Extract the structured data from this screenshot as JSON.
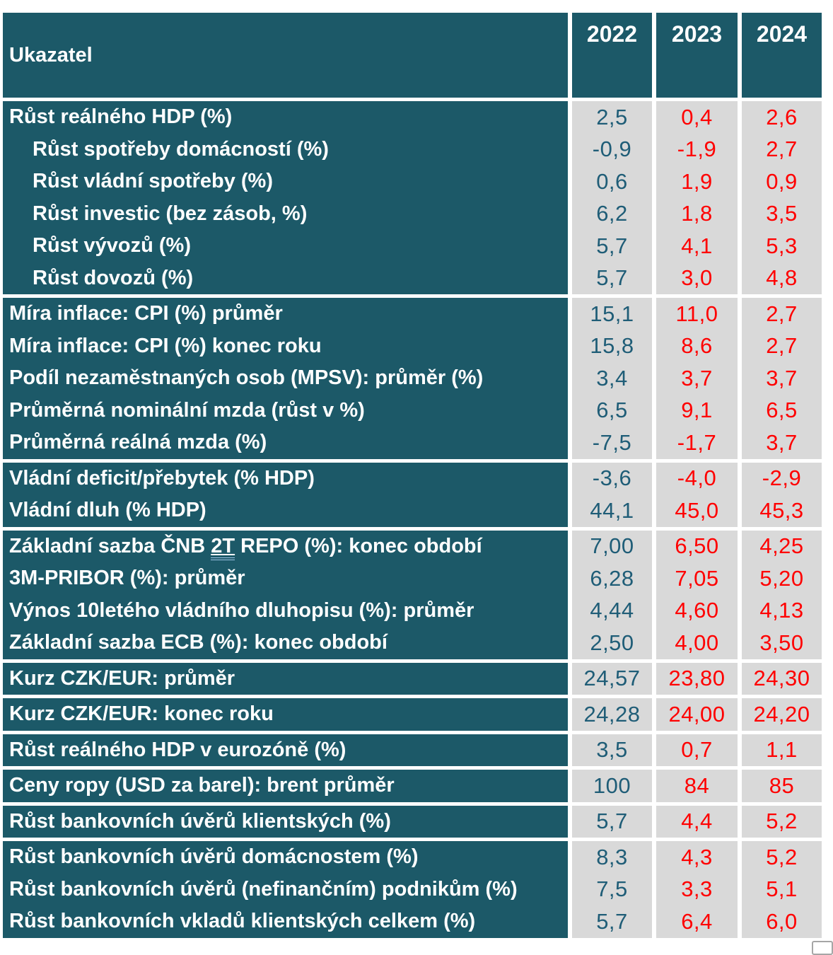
{
  "table": {
    "header": {
      "label": "Ukazatel",
      "years": [
        "2022",
        "2023",
        "2024"
      ]
    },
    "colors": {
      "label_background": "#1c5968",
      "value_cell_background": "#d9d9d9",
      "year_2022_value_text": "#1f5d77",
      "forecast_value_text": "#ff0000",
      "header_text": "#ffffff",
      "underline_accent": "#9dc3e6"
    },
    "blocks": [
      {
        "rows": [
          {
            "label": "Růst reálného HDP (%)",
            "indent": false,
            "values": [
              "2,5",
              "0,4",
              "2,6"
            ]
          },
          {
            "label": "Růst spotřeby domácností (%)",
            "indent": true,
            "values": [
              "-0,9",
              "-1,9",
              "2,7"
            ]
          },
          {
            "label": "Růst vládní spotřeby (%)",
            "indent": true,
            "values": [
              "0,6",
              "1,9",
              "0,9"
            ]
          },
          {
            "label": "Růst investic (bez zásob, %)",
            "indent": true,
            "values": [
              "6,2",
              "1,8",
              "3,5"
            ]
          },
          {
            "label": "Růst vývozů (%)",
            "indent": true,
            "values": [
              "5,7",
              "4,1",
              "5,3"
            ]
          },
          {
            "label": "Růst dovozů (%)",
            "indent": true,
            "values": [
              "5,7",
              "3,0",
              "4,8"
            ]
          }
        ]
      },
      {
        "rows": [
          {
            "label": "Míra inflace: CPI (%) průměr",
            "indent": false,
            "values": [
              "15,1",
              "11,0",
              "2,7"
            ]
          },
          {
            "label": "Míra inflace: CPI (%) konec roku",
            "indent": false,
            "values": [
              "15,8",
              "8,6",
              "2,7"
            ]
          },
          {
            "label": "Podíl nezaměstnaných osob (MPSV): průměr (%)",
            "indent": false,
            "values": [
              "3,4",
              "3,7",
              "3,7"
            ]
          },
          {
            "label": "Průměrná nominální mzda (růst v %)",
            "indent": false,
            "values": [
              "6,5",
              "9,1",
              "6,5"
            ]
          },
          {
            "label": "Průměrná reálná mzda (%)",
            "indent": false,
            "values": [
              "-7,5",
              "-1,7",
              "3,7"
            ]
          }
        ]
      },
      {
        "rows": [
          {
            "label": "Vládní deficit/přebytek (% HDP)",
            "indent": false,
            "values": [
              "-3,6",
              "-4,0",
              "-2,9"
            ]
          },
          {
            "label": "Vládní dluh (% HDP)",
            "indent": false,
            "values": [
              "44,1",
              "45,0",
              "45,3"
            ]
          }
        ]
      },
      {
        "rows": [
          {
            "label": "Základní sazba ČNB 2T REPO (%): konec období",
            "indent": false,
            "underline": "2T",
            "values": [
              "7,00",
              "6,50",
              "4,25"
            ]
          },
          {
            "label": "3M-PRIBOR (%): průměr",
            "indent": false,
            "values": [
              "6,28",
              "7,05",
              "5,20"
            ]
          },
          {
            "label": "Výnos 10letého vládního dluhopisu (%): průměr",
            "indent": false,
            "values": [
              "4,44",
              "4,60",
              "4,13"
            ]
          },
          {
            "label": "Základní sazba ECB (%): konec období",
            "indent": false,
            "values": [
              "2,50",
              "4,00",
              "3,50"
            ]
          }
        ]
      },
      {
        "rows": [
          {
            "label": "Kurz CZK/EUR: průměr",
            "indent": false,
            "values": [
              "24,57",
              "23,80",
              "24,30"
            ]
          }
        ]
      },
      {
        "rows": [
          {
            "label": "Kurz CZK/EUR: konec roku",
            "indent": false,
            "values": [
              "24,28",
              "24,00",
              "24,20"
            ]
          }
        ]
      },
      {
        "rows": [
          {
            "label": "Růst reálného HDP v eurozóně (%)",
            "indent": false,
            "values": [
              "3,5",
              "0,7",
              "1,1"
            ]
          }
        ]
      },
      {
        "rows": [
          {
            "label": "Ceny ropy (USD za barel): brent průměr",
            "indent": false,
            "values": [
              "100",
              "84",
              "85"
            ]
          }
        ]
      },
      {
        "rows": [
          {
            "label": "Růst bankovních úvěrů klientských (%)",
            "indent": false,
            "values": [
              "5,7",
              "4,4",
              "5,2"
            ]
          }
        ]
      },
      {
        "rows": [
          {
            "label": "Růst bankovních úvěrů domácnostem (%)",
            "indent": false,
            "values": [
              "8,3",
              "4,3",
              "5,2"
            ]
          },
          {
            "label": "Růst bankovních úvěrů (nefinančním) podnikům (%)",
            "indent": false,
            "values": [
              "7,5",
              "3,3",
              "5,1"
            ]
          },
          {
            "label": "Růst bankovních vkladů klientských celkem (%)",
            "indent": false,
            "values": [
              "5,7",
              "6,4",
              "6,0"
            ]
          }
        ]
      }
    ]
  }
}
